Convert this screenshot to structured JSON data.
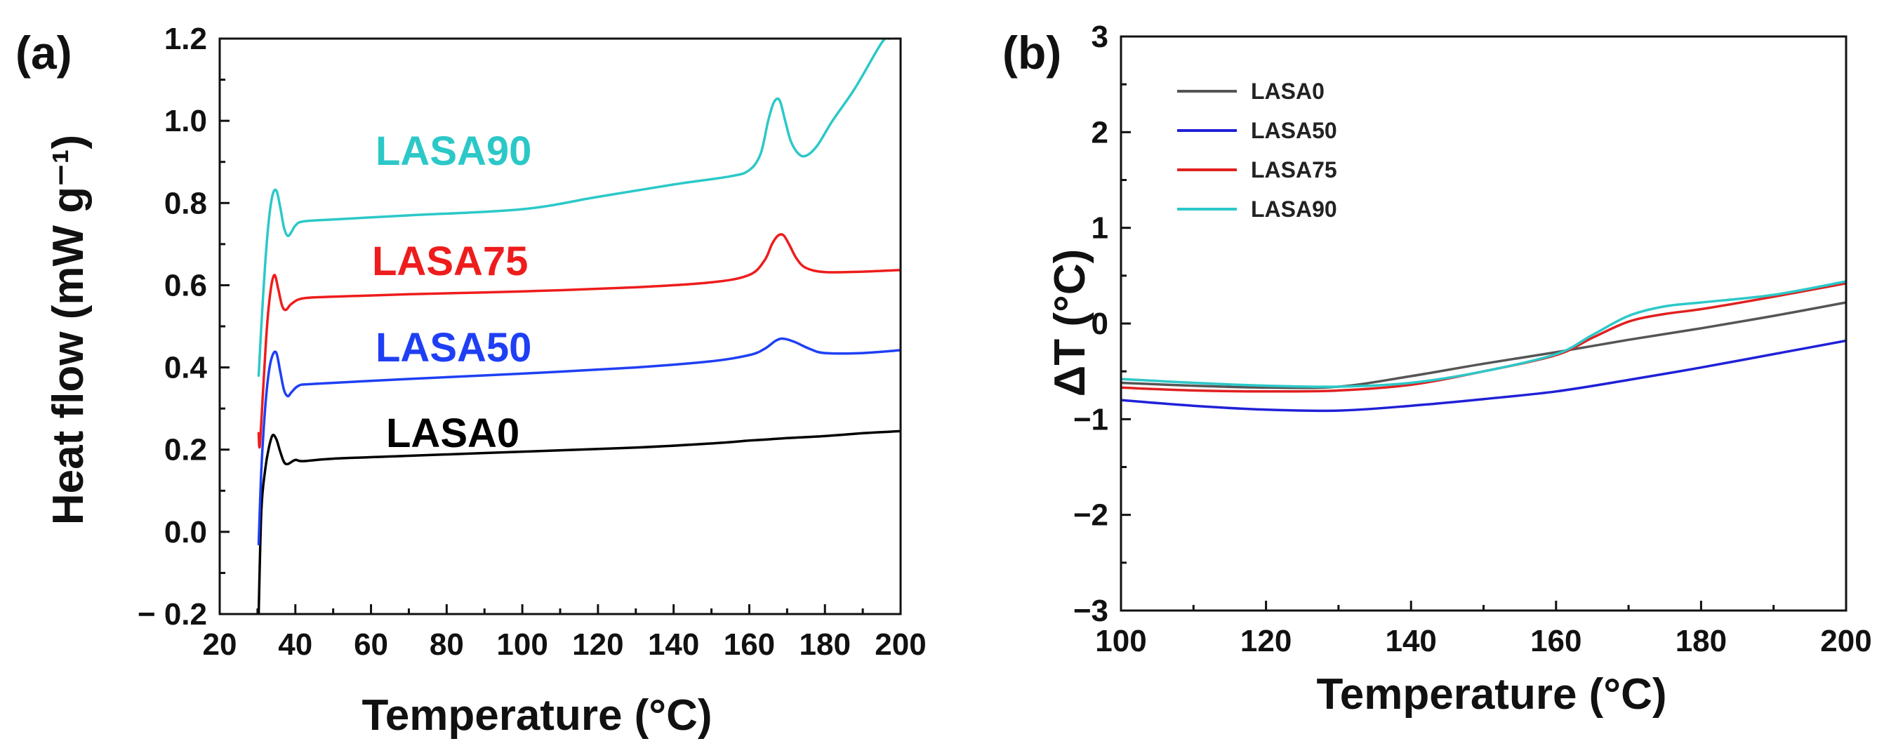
{
  "chart_data": [
    {
      "panel_label": "(a)",
      "type": "line",
      "xlabel": "Temperature (°C)",
      "ylabel": "Heat flow (mW g⁻¹)",
      "xlim": [
        20,
        200
      ],
      "ylim": [
        -0.2,
        1.2
      ],
      "xticks": [
        20,
        40,
        60,
        80,
        100,
        120,
        140,
        160,
        180,
        200
      ],
      "yticks": [
        -0.2,
        0.0,
        0.2,
        0.4,
        0.6,
        0.8,
        1.0,
        1.2
      ],
      "ytick_labels": [
        "− 0.2",
        "0.0",
        "0.2",
        "0.4",
        "0.6",
        "0.8",
        "1.0",
        "1.2"
      ],
      "series": [
        {
          "name": "LASA0",
          "color": "#000000",
          "points": [
            [
              30.3,
              -0.2
            ],
            [
              31,
              0.05
            ],
            [
              32,
              0.15
            ],
            [
              33,
              0.205
            ],
            [
              34,
              0.235
            ],
            [
              35,
              0.225
            ],
            [
              36,
              0.195
            ],
            [
              37,
              0.17
            ],
            [
              38,
              0.165
            ],
            [
              40,
              0.175
            ],
            [
              42,
              0.172
            ],
            [
              50,
              0.178
            ],
            [
              70,
              0.185
            ],
            [
              100,
              0.195
            ],
            [
              130,
              0.205
            ],
            [
              150,
              0.215
            ],
            [
              160,
              0.222
            ],
            [
              165,
              0.225
            ],
            [
              170,
              0.228
            ],
            [
              180,
              0.233
            ],
            [
              190,
              0.24
            ],
            [
              200,
              0.245
            ]
          ]
        },
        {
          "name": "LASA50",
          "color": "#1f3ff5",
          "points": [
            [
              30.3,
              -0.03
            ],
            [
              31,
              0.15
            ],
            [
              32,
              0.3
            ],
            [
              33,
              0.39
            ],
            [
              34,
              0.43
            ],
            [
              35,
              0.435
            ],
            [
              36,
              0.39
            ],
            [
              37,
              0.345
            ],
            [
              38,
              0.33
            ],
            [
              39,
              0.34
            ],
            [
              41,
              0.356
            ],
            [
              45,
              0.36
            ],
            [
              70,
              0.372
            ],
            [
              100,
              0.385
            ],
            [
              130,
              0.4
            ],
            [
              150,
              0.415
            ],
            [
              160,
              0.43
            ],
            [
              164,
              0.445
            ],
            [
              167,
              0.465
            ],
            [
              169,
              0.47
            ],
            [
              172,
              0.462
            ],
            [
              176,
              0.445
            ],
            [
              180,
              0.435
            ],
            [
              190,
              0.435
            ],
            [
              200,
              0.442
            ]
          ]
        },
        {
          "name": "LASA75",
          "color": "#ee1c1c",
          "points": [
            [
              30.3,
              0.24
            ],
            [
              30.6,
              0.21
            ],
            [
              31.5,
              0.35
            ],
            [
              32.5,
              0.5
            ],
            [
              33.5,
              0.59
            ],
            [
              34.5,
              0.625
            ],
            [
              35.5,
              0.59
            ],
            [
              36.5,
              0.55
            ],
            [
              37.5,
              0.54
            ],
            [
              39,
              0.555
            ],
            [
              42,
              0.568
            ],
            [
              50,
              0.572
            ],
            [
              70,
              0.578
            ],
            [
              100,
              0.585
            ],
            [
              130,
              0.595
            ],
            [
              150,
              0.607
            ],
            [
              160,
              0.625
            ],
            [
              164,
              0.66
            ],
            [
              166,
              0.7
            ],
            [
              167.5,
              0.72
            ],
            [
              169,
              0.722
            ],
            [
              170.5,
              0.7
            ],
            [
              172.5,
              0.665
            ],
            [
              175,
              0.642
            ],
            [
              180,
              0.632
            ],
            [
              190,
              0.633
            ],
            [
              200,
              0.637
            ]
          ]
        },
        {
          "name": "LASA90",
          "color": "#2cc8c8",
          "points": [
            [
              30.3,
              0.38
            ],
            [
              31,
              0.5
            ],
            [
              32,
              0.65
            ],
            [
              33,
              0.76
            ],
            [
              34,
              0.82
            ],
            [
              35,
              0.83
            ],
            [
              36,
              0.79
            ],
            [
              37,
              0.74
            ],
            [
              38,
              0.72
            ],
            [
              39,
              0.73
            ],
            [
              40,
              0.745
            ],
            [
              42,
              0.755
            ],
            [
              50,
              0.76
            ],
            [
              70,
              0.77
            ],
            [
              100,
              0.785
            ],
            [
              120,
              0.815
            ],
            [
              140,
              0.845
            ],
            [
              155,
              0.865
            ],
            [
              160,
              0.88
            ],
            [
              163,
              0.92
            ],
            [
              165,
              1.0
            ],
            [
              166.5,
              1.045
            ],
            [
              168,
              1.05
            ],
            [
              169.5,
              1.0
            ],
            [
              171,
              0.95
            ],
            [
              173,
              0.92
            ],
            [
              175,
              0.915
            ],
            [
              178,
              0.94
            ],
            [
              182,
              1.0
            ],
            [
              188,
              1.08
            ],
            [
              195,
              1.19
            ],
            [
              197,
              1.2
            ]
          ]
        }
      ],
      "annotations": [
        {
          "text": "LASA90",
          "color": "#2cc8c8"
        },
        {
          "text": "LASA75",
          "color": "#ee1c1c"
        },
        {
          "text": "LASA50",
          "color": "#1f3ff5"
        },
        {
          "text": "LASA0",
          "color": "#000000"
        }
      ]
    },
    {
      "panel_label": "(b)",
      "type": "line",
      "xlabel": "Temperature (°C)",
      "ylabel": "ΔT (°C)",
      "xlim": [
        100,
        200
      ],
      "ylim": [
        -3,
        3
      ],
      "xticks": [
        100,
        120,
        140,
        160,
        180,
        200
      ],
      "yticks": [
        -3,
        -2,
        -1,
        0,
        1,
        2,
        3
      ],
      "ytick_labels": [
        "−3",
        "−2",
        "−1",
        "0",
        "1",
        "2",
        "3"
      ],
      "legend_position": "top-left",
      "series": [
        {
          "name": "LASA0",
          "color": "#555555",
          "points": [
            [
              100,
              -0.62
            ],
            [
              110,
              -0.65
            ],
            [
              120,
              -0.67
            ],
            [
              130,
              -0.66
            ],
            [
              140,
              -0.55
            ],
            [
              150,
              -0.42
            ],
            [
              160,
              -0.3
            ],
            [
              170,
              -0.17
            ],
            [
              180,
              -0.05
            ],
            [
              190,
              0.08
            ],
            [
              200,
              0.22
            ]
          ]
        },
        {
          "name": "LASA50",
          "color": "#2020d8",
          "points": [
            [
              100,
              -0.8
            ],
            [
              110,
              -0.86
            ],
            [
              120,
              -0.9
            ],
            [
              130,
              -0.91
            ],
            [
              140,
              -0.86
            ],
            [
              150,
              -0.79
            ],
            [
              160,
              -0.71
            ],
            [
              170,
              -0.59
            ],
            [
              180,
              -0.46
            ],
            [
              190,
              -0.32
            ],
            [
              200,
              -0.18
            ]
          ]
        },
        {
          "name": "LASA75",
          "color": "#e02020",
          "points": [
            [
              100,
              -0.67
            ],
            [
              110,
              -0.7
            ],
            [
              120,
              -0.71
            ],
            [
              130,
              -0.7
            ],
            [
              140,
              -0.64
            ],
            [
              150,
              -0.5
            ],
            [
              160,
              -0.33
            ],
            [
              165,
              -0.15
            ],
            [
              170,
              0.02
            ],
            [
              175,
              0.1
            ],
            [
              180,
              0.15
            ],
            [
              190,
              0.28
            ],
            [
              200,
              0.42
            ]
          ]
        },
        {
          "name": "LASA90",
          "color": "#2cc8c8",
          "points": [
            [
              100,
              -0.58
            ],
            [
              110,
              -0.62
            ],
            [
              120,
              -0.65
            ],
            [
              130,
              -0.66
            ],
            [
              140,
              -0.62
            ],
            [
              150,
              -0.5
            ],
            [
              160,
              -0.32
            ],
            [
              165,
              -0.12
            ],
            [
              170,
              0.08
            ],
            [
              175,
              0.18
            ],
            [
              180,
              0.22
            ],
            [
              190,
              0.3
            ],
            [
              200,
              0.44
            ]
          ]
        }
      ]
    }
  ]
}
